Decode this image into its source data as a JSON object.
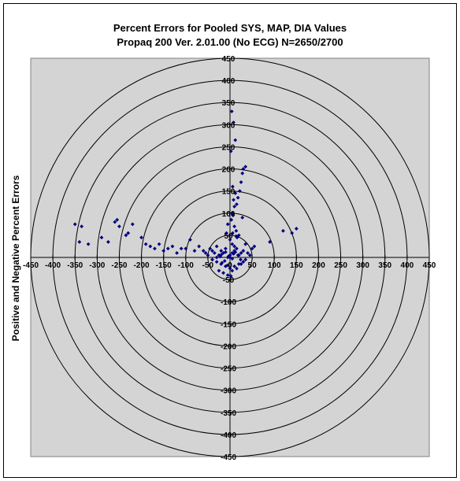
{
  "colors": {
    "plot_background": "#d4d4d4",
    "ring_color": "#000000",
    "point_color": "#000080",
    "axis_color": "#000000"
  },
  "chart_data": {
    "type": "scatter",
    "title": "Percent Errors for Pooled SYS, MAP, DIA Values",
    "subtitle": "Propaq 200 Ver. 2.01.00 (No ECG) N=2650/2700",
    "xlabel": "",
    "ylabel": "Positive and Negative Percent Errors",
    "xlim": [
      -450,
      450
    ],
    "ylim": [
      -450,
      450
    ],
    "x_ticks": [
      -450,
      -400,
      -350,
      -300,
      -250,
      -200,
      -150,
      -100,
      -50,
      0,
      50,
      100,
      150,
      200,
      250,
      300,
      350,
      400,
      450
    ],
    "y_ticks": [
      450,
      400,
      350,
      300,
      250,
      200,
      150,
      100,
      50,
      0,
      -50,
      -100,
      -150,
      -200,
      -250,
      -300,
      -350,
      -400,
      -450
    ],
    "ring_radii": [
      50,
      100,
      150,
      200,
      250,
      300,
      350,
      400,
      450
    ],
    "grid": false,
    "legend": "none",
    "series": [
      {
        "x": [
          -350,
          -340,
          -335,
          -320,
          -290,
          -275,
          -260,
          -255,
          -250,
          -235,
          -230,
          -220,
          -200,
          -190,
          -180,
          -170,
          -160,
          -150,
          -140,
          -130,
          -120,
          -110,
          -100,
          -90,
          -80,
          -70,
          -60,
          -55,
          -50,
          -45,
          -40,
          -35,
          -30,
          -25,
          -20,
          -15,
          -10,
          -5,
          0,
          5,
          10,
          15,
          20,
          25,
          30,
          35,
          40,
          45,
          50,
          55,
          90,
          120,
          140,
          150,
          -40,
          -30,
          -20,
          -10,
          0,
          10,
          20,
          30,
          -25,
          -15,
          -5,
          5,
          15,
          25,
          35,
          5,
          10,
          8,
          12,
          6,
          15,
          18,
          22,
          25,
          30,
          28,
          35,
          3,
          7,
          10,
          14,
          16,
          20,
          4,
          8,
          12,
          2,
          -5,
          -8,
          0,
          5,
          10,
          -12,
          -18,
          -22,
          0,
          5,
          -3,
          8,
          12,
          -6,
          2,
          18,
          24,
          -10,
          -20,
          -30,
          14,
          28,
          6
        ],
        "y": [
          75,
          35,
          70,
          30,
          45,
          35,
          80,
          85,
          70,
          50,
          55,
          75,
          45,
          30,
          25,
          20,
          30,
          15,
          20,
          25,
          10,
          20,
          20,
          40,
          15,
          25,
          15,
          10,
          5,
          20,
          15,
          10,
          25,
          5,
          15,
          10,
          20,
          0,
          5,
          10,
          15,
          20,
          5,
          10,
          15,
          30,
          10,
          5,
          20,
          25,
          35,
          60,
          55,
          65,
          -5,
          -10,
          -15,
          -20,
          -25,
          -20,
          -15,
          -10,
          -30,
          -35,
          -40,
          -30,
          -25,
          -15,
          -5,
          100,
          115,
          130,
          145,
          160,
          120,
          135,
          150,
          170,
          200,
          190,
          205,
          85,
          95,
          70,
          60,
          45,
          50,
          330,
          305,
          265,
          240,
          75,
          55,
          40,
          30,
          25,
          -8,
          -12,
          2,
          0,
          -3,
          3,
          8,
          12,
          -18,
          -42,
          5,
          -5,
          12,
          6,
          0,
          48,
          90,
          55
        ]
      }
    ]
  }
}
